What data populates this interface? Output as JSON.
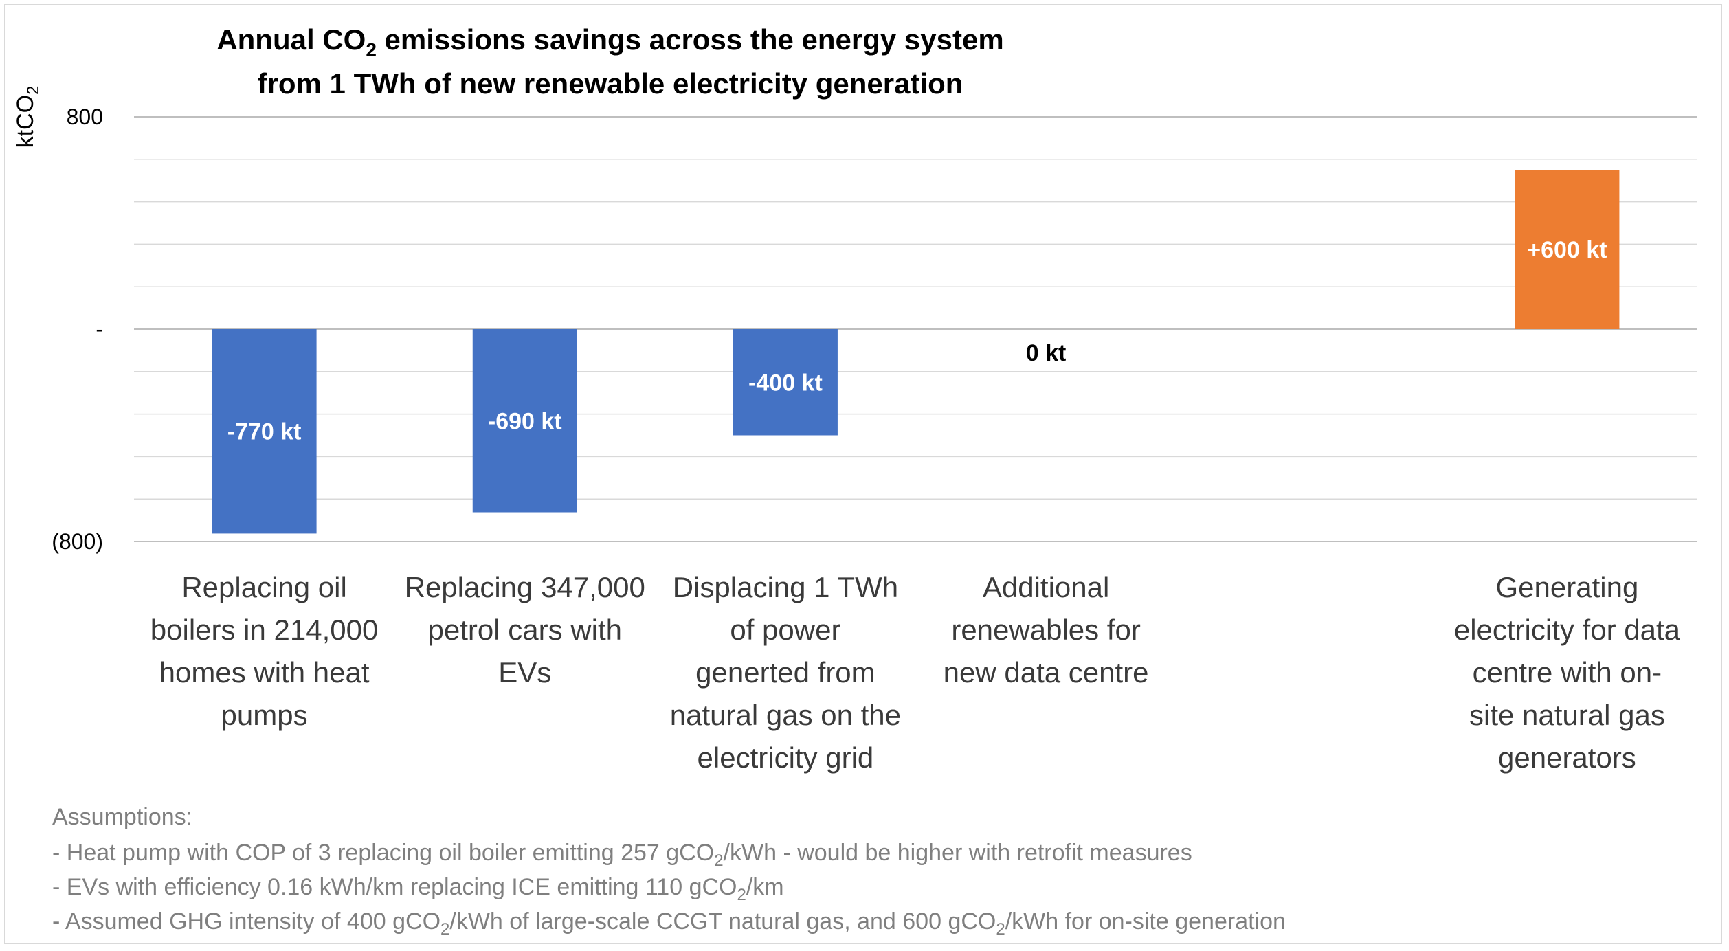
{
  "chart_data": {
    "type": "bar",
    "title": {
      "line1": {
        "pre": "Annual CO",
        "sub": "2",
        "post": " emissions savings across the energy system"
      },
      "line2": "from 1 TWh of new renewable electricity generation"
    },
    "ylabel": {
      "pre": "ktCO",
      "sub": "2"
    },
    "ylim": [
      -800,
      800
    ],
    "y_ticks": [
      {
        "value": 800,
        "label": "800"
      },
      {
        "value": 0,
        "label": "-"
      },
      {
        "value": -800,
        "label": "(800)"
      }
    ],
    "minor_gridline_step": 160,
    "categories": [
      {
        "lines": [
          "Replacing oil",
          "boilers in 214,000",
          "homes with heat",
          "pumps"
        ]
      },
      {
        "lines": [
          "Replacing 347,000",
          "petrol cars with",
          "EVs"
        ]
      },
      {
        "lines": [
          "Displacing 1 TWh",
          "of power",
          "generted from",
          "natural gas on the",
          "electricity grid"
        ]
      },
      {
        "lines": [
          "Additional",
          "renewables for",
          "new data centre"
        ]
      },
      {
        "lines": []
      },
      {
        "lines": [
          "Generating",
          "electricity for data",
          "centre with on-",
          "site natural gas",
          "generators"
        ]
      }
    ],
    "values": [
      -770,
      -690,
      -400,
      0,
      null,
      600
    ],
    "data_labels": [
      "-770 kt",
      "-690 kt",
      "-400 kt",
      "0 kt",
      "",
      "+600 kt"
    ],
    "colors": {
      "negative": "#4472c4",
      "positive": "#ed7d31",
      "label_on_bar": "#ffffff",
      "label_off_bar": "#000000",
      "gridline": "#d9d9d9"
    },
    "legend": "none",
    "grid": true
  },
  "notes": {
    "heading": "Assumptions:",
    "lines": [
      [
        {
          "t": "- Heat pump with COP of 3 replacing oil boiler emitting 257 gCO"
        },
        {
          "t": "2",
          "sub": true
        },
        {
          "t": "/kWh - would be higher with retrofit measures"
        }
      ],
      [
        {
          "t": "- EVs with efficiency 0.16 kWh/km replacing ICE emitting 110 gCO"
        },
        {
          "t": "2",
          "sub": true
        },
        {
          "t": "/km"
        }
      ],
      [
        {
          "t": "- Assumed GHG intensity of 400 gCO"
        },
        {
          "t": "2",
          "sub": true
        },
        {
          "t": "/kWh of large-scale CCGT natural gas, and 600 gCO"
        },
        {
          "t": "2",
          "sub": true
        },
        {
          "t": "/kWh for on-site generation"
        }
      ]
    ]
  }
}
